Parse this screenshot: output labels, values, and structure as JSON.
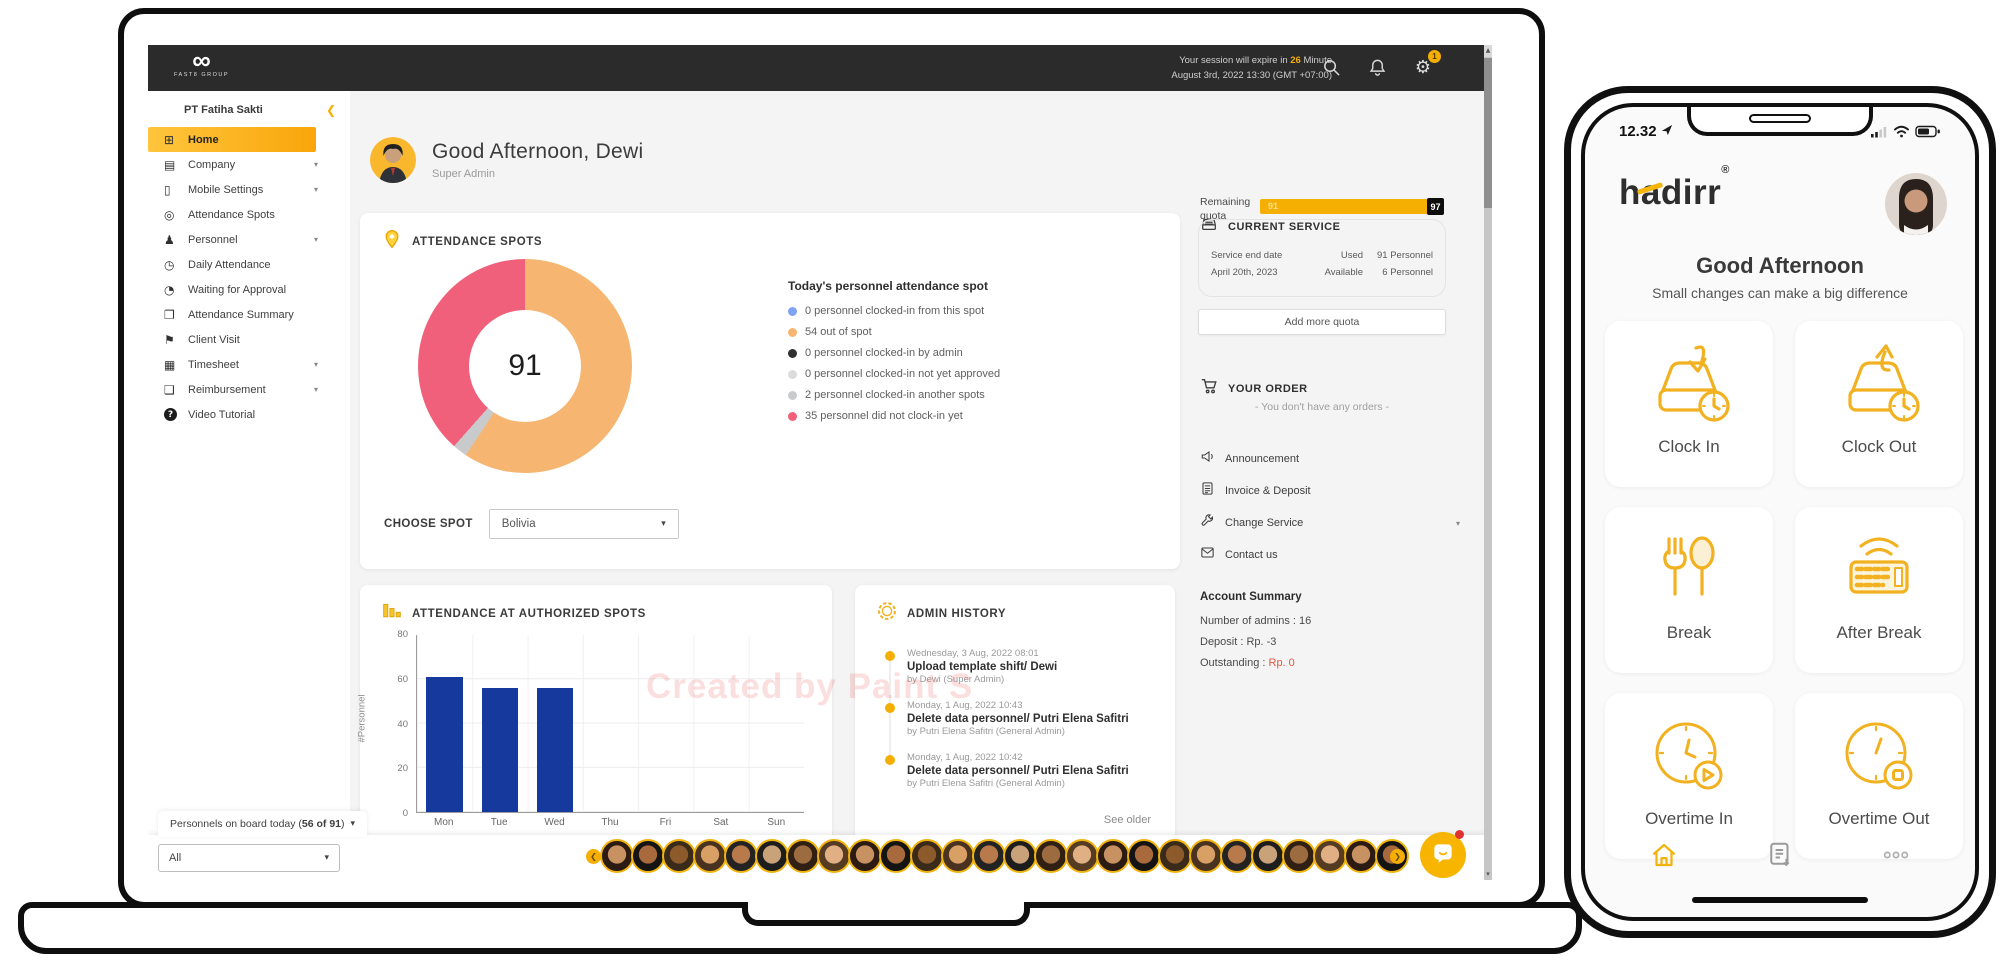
{
  "topbar": {
    "brand_symbol": "∞",
    "brand_text": "FAST8 GROUP",
    "session_pre": "Your session will expire in ",
    "session_minutes": "26",
    "session_post": " Minute",
    "session_line2": "August 3rd, 2022 13:30 (GMT +07:00)",
    "notification_count": "1",
    "gear_glyph": "⚙"
  },
  "sidebar": {
    "company_name": "PT Fatiha Sakti",
    "collapse_glyph": "❮",
    "items": [
      {
        "label": "Home",
        "icon": "home",
        "active": true,
        "expandable": false
      },
      {
        "label": "Company",
        "icon": "company",
        "expandable": true
      },
      {
        "label": "Mobile Settings",
        "icon": "mobile",
        "expandable": true
      },
      {
        "label": "Attendance Spots",
        "icon": "location-pin",
        "expandable": false
      },
      {
        "label": "Personnel",
        "icon": "person",
        "expandable": true
      },
      {
        "label": "Daily Attendance",
        "icon": "clock",
        "expandable": false
      },
      {
        "label": "Waiting for Approval",
        "icon": "clock-pending",
        "expandable": false
      },
      {
        "label": "Attendance Summary",
        "icon": "document",
        "expandable": false
      },
      {
        "label": "Client Visit",
        "icon": "runner",
        "expandable": false
      },
      {
        "label": "Timesheet",
        "icon": "timesheet",
        "expandable": true
      },
      {
        "label": "Reimbursement",
        "icon": "receipt",
        "expandable": true
      },
      {
        "label": "Video Tutorial",
        "icon": "help",
        "expandable": false
      }
    ]
  },
  "main": {
    "greeting_title": "Good Afternoon, Dewi",
    "greeting_subtitle": "Super Admin",
    "choose_spot_label": "CHOOSE SPOT",
    "spot_value": "Bolivia"
  },
  "chart_data": [
    {
      "type": "pie",
      "title": "ATTENDANCE SPOTS",
      "center_label": "91",
      "legend_title": "Today's personnel attendance spot",
      "legend_position": "right",
      "slices": [
        {
          "label": "0 personnel clocked-in from this spot",
          "value": 0,
          "color": "#7FA3F2"
        },
        {
          "label": "54 out of spot",
          "value": 54,
          "color": "#F6B571"
        },
        {
          "label": "0 personnel clocked-in by admin",
          "value": 0,
          "color": "#2F2F2F"
        },
        {
          "label": "0 personnel clocked-in not yet approved",
          "value": 0,
          "color": "#DCDCDC"
        },
        {
          "label": "2 personnel clocked-in another spots",
          "value": 2,
          "color": "#C8CACC"
        },
        {
          "label": "35 personnel did not clock-in yet",
          "value": 35,
          "color": "#F1607A"
        }
      ]
    },
    {
      "type": "bar",
      "title": "ATTENDANCE AT AUTHORIZED SPOTS",
      "categories": [
        "Mon",
        "Tue",
        "Wed",
        "Thu",
        "Fri",
        "Sat",
        "Sun"
      ],
      "values": [
        61,
        56,
        56,
        0,
        0,
        0,
        0
      ],
      "xlabel": "",
      "ylabel": "#Personnel",
      "ylim": [
        0,
        80
      ],
      "yticks": [
        0,
        20,
        40,
        60,
        80
      ],
      "bar_color": "#16399E",
      "grid": true
    }
  ],
  "admin_history": {
    "title": "ADMIN HISTORY",
    "entries": [
      {
        "date": "Wednesday, 3 Aug, 2022 08:01",
        "action": "Upload template shift/ Dewi",
        "by": "by Dewi (Super Admin)"
      },
      {
        "date": "Monday, 1 Aug, 2022 10:43",
        "action": "Delete data personnel/ Putri Elena Safitri",
        "by": "by Putri Elena Safitri (General Admin)"
      },
      {
        "date": "Monday, 1 Aug, 2022 10:42",
        "action": "Delete data personnel/ Putri Elena Safitri",
        "by": "by Putri Elena Safitri (General Admin)"
      }
    ],
    "see_older": "See older"
  },
  "watermark": "Created by Paint S",
  "service": {
    "title": "CURRENT SERVICE",
    "remaining_label": "Remaining quota",
    "bar_value": "91",
    "bar_max": "97",
    "end_date_label": "Service end date",
    "end_date": "April 20th, 2023",
    "used_label": "Used",
    "used_value": "91 Personnel",
    "available_label": "Available",
    "available_value": "6 Personnel",
    "add_quota_label": "Add more quota"
  },
  "order": {
    "title": "YOUR ORDER",
    "empty_text": "- You don't have any orders -"
  },
  "links": [
    {
      "label": "Announcement",
      "icon": "megaphone",
      "expandable": false
    },
    {
      "label": "Invoice & Deposit",
      "icon": "calculator",
      "expandable": false
    },
    {
      "label": "Change Service",
      "icon": "wrench",
      "expandable": true
    },
    {
      "label": "Contact us",
      "icon": "envelope",
      "expandable": false
    }
  ],
  "account": {
    "title": "Account Summary",
    "admins": "Number of admins : 16",
    "deposit": "Deposit : Rp. -3",
    "outstanding_label": "Outstanding : ",
    "outstanding_value": "Rp. 0"
  },
  "bottom": {
    "pers_pre": "Personnels on board today (",
    "pers_bold": "56 of 91",
    "pers_post": ")",
    "filter_value": "All",
    "avatar_count": 26
  },
  "phone": {
    "status_time": "12.32",
    "logo_pre": "h",
    "logo_accent": "a",
    "logo_post": "dirr",
    "logo_reg": "®",
    "greeting_title": "Good Afternoon",
    "greeting_subtitle": "Small changes can make a big difference",
    "buttons": [
      {
        "label": "Clock In",
        "icon": "clock-in"
      },
      {
        "label": "Clock Out",
        "icon": "clock-out"
      },
      {
        "label": "Break",
        "icon": "break"
      },
      {
        "label": "After Break",
        "icon": "after-break"
      },
      {
        "label": "Overtime In",
        "icon": "overtime-in"
      },
      {
        "label": "Overtime Out",
        "icon": "overtime-out"
      }
    ]
  }
}
